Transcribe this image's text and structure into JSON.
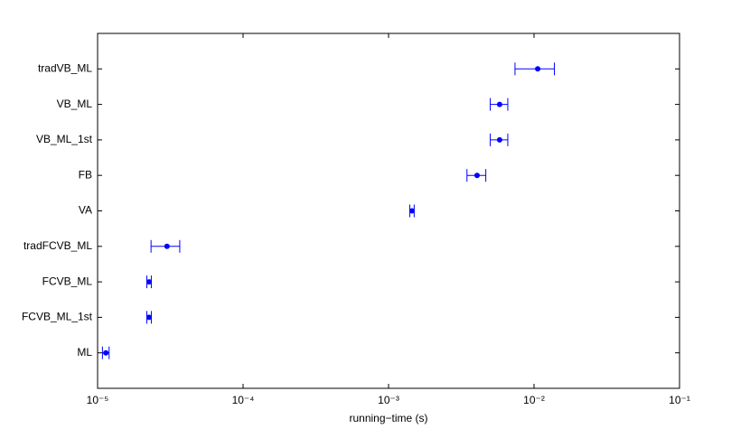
{
  "chart_data": {
    "type": "errorbar",
    "orientation": "horizontal",
    "x_label": "running−time (s)",
    "categories": [
      "ML",
      "FCVB_ML_1st",
      "FCVB_ML",
      "tradFCVB_ML",
      "VA",
      "FB",
      "VB_ML_1st",
      "VB_ML",
      "tradVB_ML"
    ],
    "values": [
      1.14e-05,
      2.26e-05,
      2.26e-05,
      3e-05,
      0.00145,
      0.00406,
      0.0058,
      0.0058,
      0.0106
    ],
    "errors": [
      6e-07,
      8e-07,
      8e-07,
      6.7e-06,
      5e-05,
      0.0006,
      0.0008,
      0.0008,
      0.0032
    ],
    "color": "#0000ff",
    "x_log": true,
    "xlim": [
      1e-05,
      0.1
    ],
    "xticks": [
      {
        "value": 1e-05,
        "label": "10⁻⁵"
      },
      {
        "value": 0.0001,
        "label": "10⁻⁴"
      },
      {
        "value": 0.001,
        "label": "10⁻³"
      },
      {
        "value": 0.01,
        "label": "10⁻²"
      },
      {
        "value": 0.1,
        "label": "10⁻¹"
      }
    ]
  }
}
